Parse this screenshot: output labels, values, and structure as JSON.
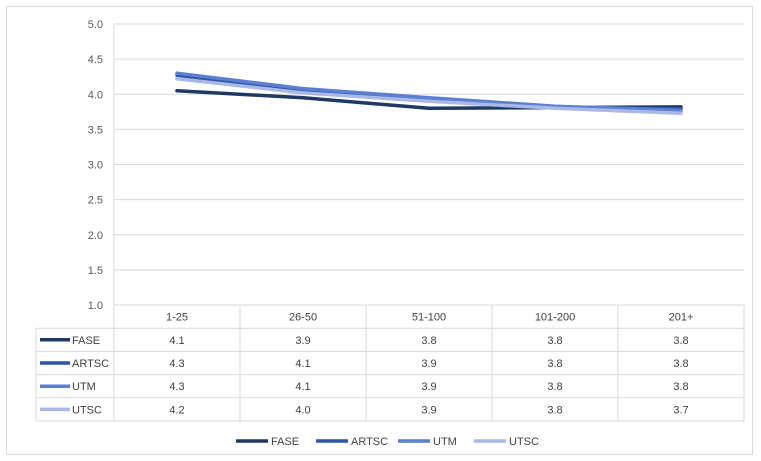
{
  "chart_data": {
    "type": "line",
    "title": "",
    "xlabel": "",
    "ylabel": "",
    "categories": [
      "1-25",
      "26-50",
      "51-100",
      "101-200",
      "201+"
    ],
    "yticks": [
      "1.0",
      "1.5",
      "2.0",
      "2.5",
      "3.0",
      "3.5",
      "4.0",
      "4.5",
      "5.0"
    ],
    "ylim": [
      1.0,
      5.0
    ],
    "grid": true,
    "legend": "bottom",
    "data_table": true,
    "series": [
      {
        "name": "FASE",
        "values": [
          4.05,
          3.95,
          3.8,
          3.81,
          3.82
        ],
        "labels": [
          "4.1",
          "3.9",
          "3.8",
          "3.8",
          "3.8"
        ],
        "color": "#203864"
      },
      {
        "name": "ARTSC",
        "values": [
          4.27,
          4.06,
          3.93,
          3.82,
          3.79
        ],
        "labels": [
          "4.3",
          "4.1",
          "3.9",
          "3.8",
          "3.8"
        ],
        "color": "#2f55a4"
      },
      {
        "name": "UTM",
        "values": [
          4.3,
          4.08,
          3.95,
          3.83,
          3.77
        ],
        "labels": [
          "4.3",
          "4.1",
          "3.9",
          "3.8",
          "3.8"
        ],
        "color": "#5b7fd1"
      },
      {
        "name": "UTSC",
        "values": [
          4.22,
          4.02,
          3.9,
          3.8,
          3.73
        ],
        "labels": [
          "4.2",
          "4.0",
          "3.9",
          "3.8",
          "3.7"
        ],
        "color": "#a9b8e6"
      }
    ]
  }
}
